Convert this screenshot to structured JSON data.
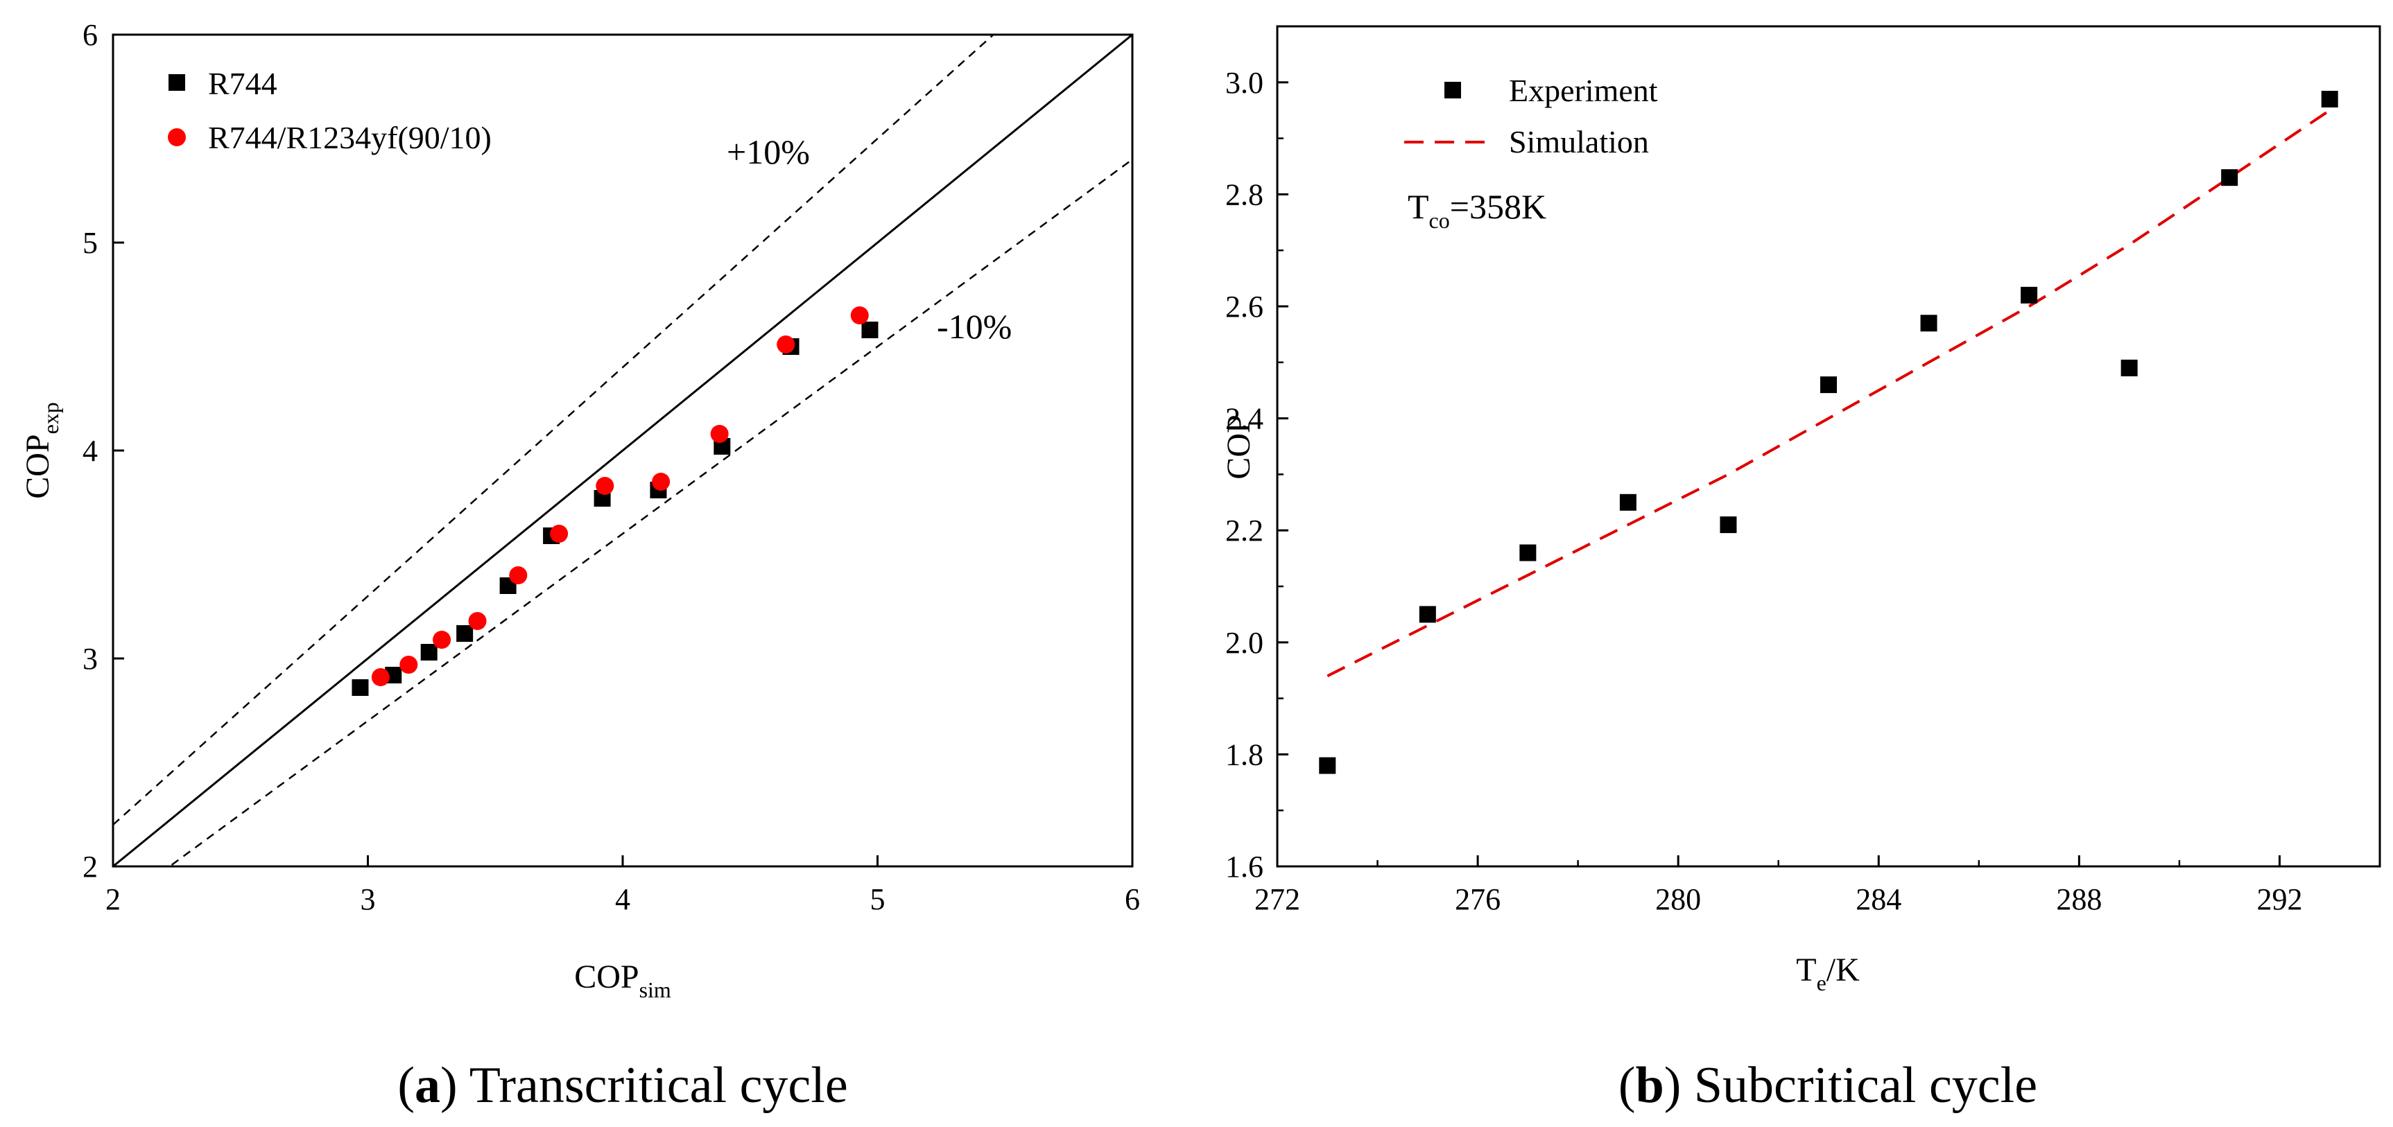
{
  "chart_data": [
    {
      "type": "scatter",
      "id": "a",
      "caption_letter": "a",
      "caption_text": "Transcritical cycle",
      "xlabel": "COP",
      "xlabel_sub": "sim",
      "ylabel": "COP",
      "ylabel_sub": "exp",
      "xlim": [
        2,
        6
      ],
      "ylim": [
        2,
        6
      ],
      "xticks": [
        2,
        3,
        4,
        5,
        6
      ],
      "yticks": [
        2,
        3,
        4,
        5,
        6
      ],
      "grid": false,
      "legend_position": "top-left",
      "series": [
        {
          "name": "R744",
          "marker": "square",
          "color": "#000000",
          "points": [
            [
              2.97,
              2.86
            ],
            [
              3.1,
              2.92
            ],
            [
              3.24,
              3.03
            ],
            [
              3.38,
              3.12
            ],
            [
              3.55,
              3.35
            ],
            [
              3.72,
              3.59
            ],
            [
              3.92,
              3.77
            ],
            [
              4.14,
              3.81
            ],
            [
              4.39,
              4.02
            ],
            [
              4.66,
              4.5
            ],
            [
              4.97,
              4.58
            ]
          ]
        },
        {
          "name": "R744/R1234yf(90/10)",
          "marker": "circle",
          "color": "#ff0000",
          "points": [
            [
              3.05,
              2.91
            ],
            [
              3.16,
              2.97
            ],
            [
              3.29,
              3.09
            ],
            [
              3.43,
              3.18
            ],
            [
              3.59,
              3.4
            ],
            [
              3.75,
              3.6
            ],
            [
              3.93,
              3.83
            ],
            [
              4.15,
              3.85
            ],
            [
              4.38,
              4.08
            ],
            [
              4.64,
              4.51
            ],
            [
              4.93,
              4.65
            ]
          ]
        }
      ],
      "reference_lines": [
        {
          "name": "y=x",
          "slope": 1.0,
          "style": "solid"
        },
        {
          "name": "+10%",
          "slope": 1.1,
          "style": "dashed",
          "label": "+10%"
        },
        {
          "name": "-10%",
          "slope": 0.9,
          "style": "dashed",
          "label": "-10%"
        }
      ]
    },
    {
      "type": "scatter",
      "id": "b",
      "caption_letter": "b",
      "caption_text": "Subcritical cycle",
      "xlabel": "T",
      "xlabel_sub": "e",
      "xlabel_rest": "/K",
      "ylabel": "COP",
      "xlim": [
        272,
        294
      ],
      "ylim": [
        1.6,
        3.1
      ],
      "xticks": [
        272,
        276,
        280,
        284,
        288,
        292
      ],
      "yticks": [
        1.6,
        1.8,
        2.0,
        2.2,
        2.4,
        2.6,
        2.8,
        3.0
      ],
      "ytick_labels": [
        "1.6",
        "1.8",
        "2.0",
        "2.2",
        "2.4",
        "2.6",
        "2.8",
        "3.0"
      ],
      "grid": false,
      "legend_position": "top-left",
      "annotation": {
        "text": "T",
        "sub": "co",
        "rest": "=358K"
      },
      "series": [
        {
          "name": "Experiment",
          "marker": "square",
          "color": "#000000",
          "x": [
            273,
            275,
            277,
            279,
            281,
            283,
            285,
            287,
            289,
            291,
            293
          ],
          "y": [
            1.78,
            2.05,
            2.16,
            2.25,
            2.21,
            2.46,
            2.57,
            2.62,
            2.49,
            2.83,
            2.97
          ]
        },
        {
          "name": "Simulation",
          "marker": "dashed-line",
          "color": "#e00000",
          "x": [
            273,
            275,
            277,
            279,
            281,
            283,
            285,
            287,
            289,
            291,
            293
          ],
          "y": [
            1.94,
            2.03,
            2.12,
            2.21,
            2.3,
            2.4,
            2.5,
            2.6,
            2.71,
            2.83,
            2.95
          ]
        }
      ]
    }
  ]
}
